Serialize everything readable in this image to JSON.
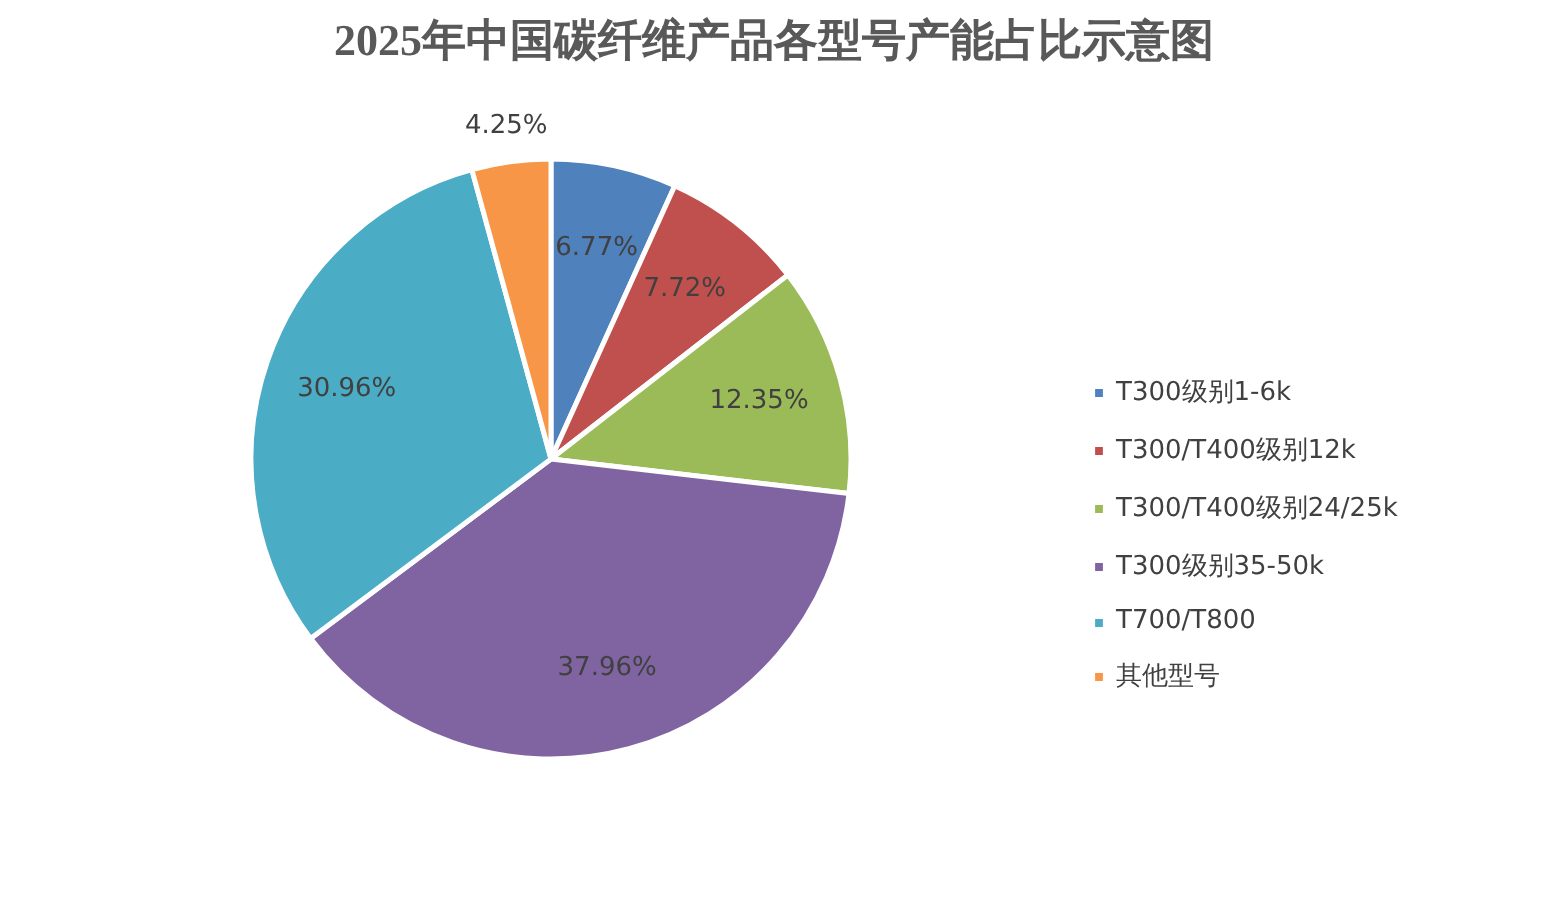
{
  "chart_data": {
    "type": "pie",
    "title": "2025年中国碳纤维产品各型号产能占比示意图",
    "categories": [
      "T300级别1-6k",
      "T300/T400级别12k",
      "T300/T400级别24/25k",
      "T300级别35-50k",
      "T700/T800",
      "其他型号"
    ],
    "values": [
      6.77,
      7.72,
      12.35,
      37.96,
      30.96,
      4.25
    ],
    "colors": [
      "#4f81bd",
      "#c0504d",
      "#9bbb59",
      "#8064a2",
      "#4bacc6",
      "#f79646"
    ],
    "value_labels": [
      "6.77%",
      "7.72%",
      "12.35%",
      "37.96%",
      "30.96%",
      "4.25%"
    ],
    "legend": "right"
  }
}
